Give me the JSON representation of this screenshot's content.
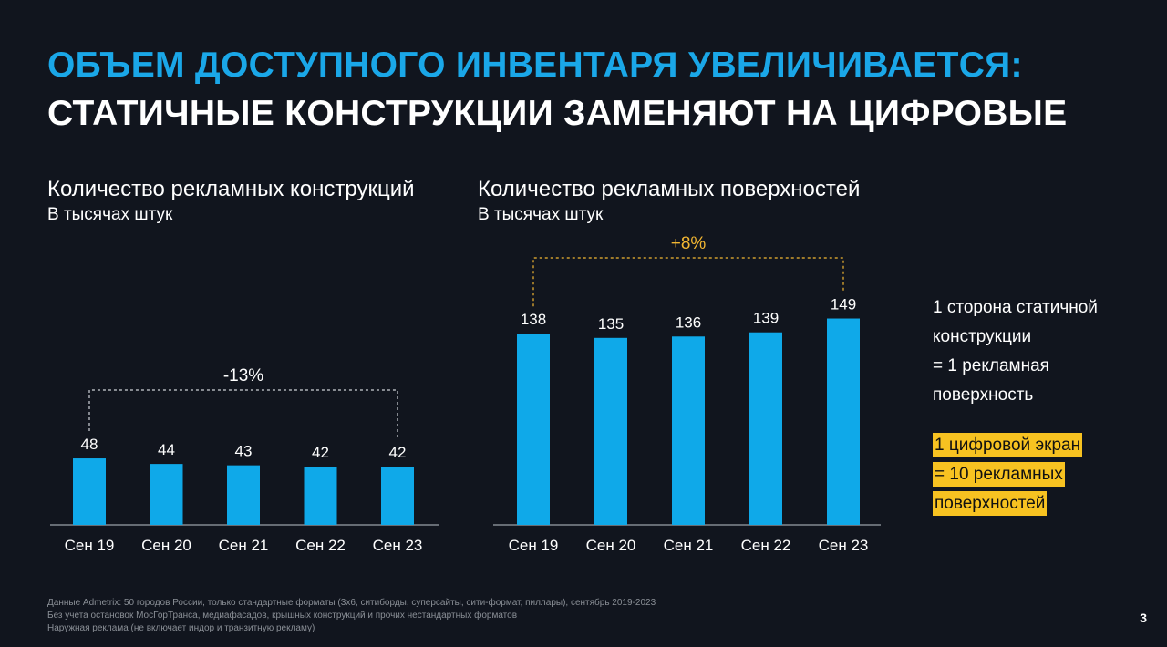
{
  "title_line1": "ОБЪЕМ ДОСТУПНОГО ИНВЕНТАРЯ УВЕЛИЧИВАЕТСЯ:",
  "title_line2": "СТАТИЧНЫЕ КОНСТРУКЦИИ ЗАМЕНЯЮТ НА ЦИФРОВЫЕ",
  "colors": {
    "bar": "#0fa9e9",
    "title_accent": "#1aa7e8",
    "change_accent": "#f2b632",
    "highlight": "#f7c221",
    "background": "#11151e"
  },
  "chart_data": [
    {
      "type": "bar",
      "title": "Количество рекламных конструкций",
      "subtitle": "В тысячах штук",
      "categories": [
        "Сен 19",
        "Сен 20",
        "Сен 21",
        "Сен 22",
        "Сен 23"
      ],
      "values": [
        48,
        44,
        43,
        42,
        42
      ],
      "value_labels": [
        "48",
        "44",
        "43",
        "42",
        "42"
      ],
      "change_label": "-13%",
      "ylim": [
        0,
        160
      ]
    },
    {
      "type": "bar",
      "title": "Количество рекламных поверхностей",
      "subtitle": "В тысячах штук",
      "categories": [
        "Сен 19",
        "Сен 20",
        "Сен 21",
        "Сен 22",
        "Сен 23"
      ],
      "values": [
        138,
        135,
        136,
        139,
        149
      ],
      "value_labels": [
        "138",
        "135",
        "136",
        "139",
        "149"
      ],
      "change_label": "+8%",
      "ylim": [
        0,
        160
      ]
    }
  ],
  "note_static": [
    "1 сторона статичной",
    "конструкции",
    "= 1 рекламная",
    "поверхность"
  ],
  "note_digital": [
    "1 цифровой экран",
    "= 10 рекламных",
    "поверхностей"
  ],
  "footnotes": [
    "Данные Admetrix: 50 городов России, только стандартные форматы (3х6, ситиборды, суперсайты, сити-формат, пиллары), сентябрь 2019-2023",
    "Без учета остановок МосГорТранса, медиафасадов, крышных конструкций и прочих нестандартных форматов",
    "Наружная реклама (не включает индор и транзитную рекламу)"
  ],
  "page_number": "3"
}
